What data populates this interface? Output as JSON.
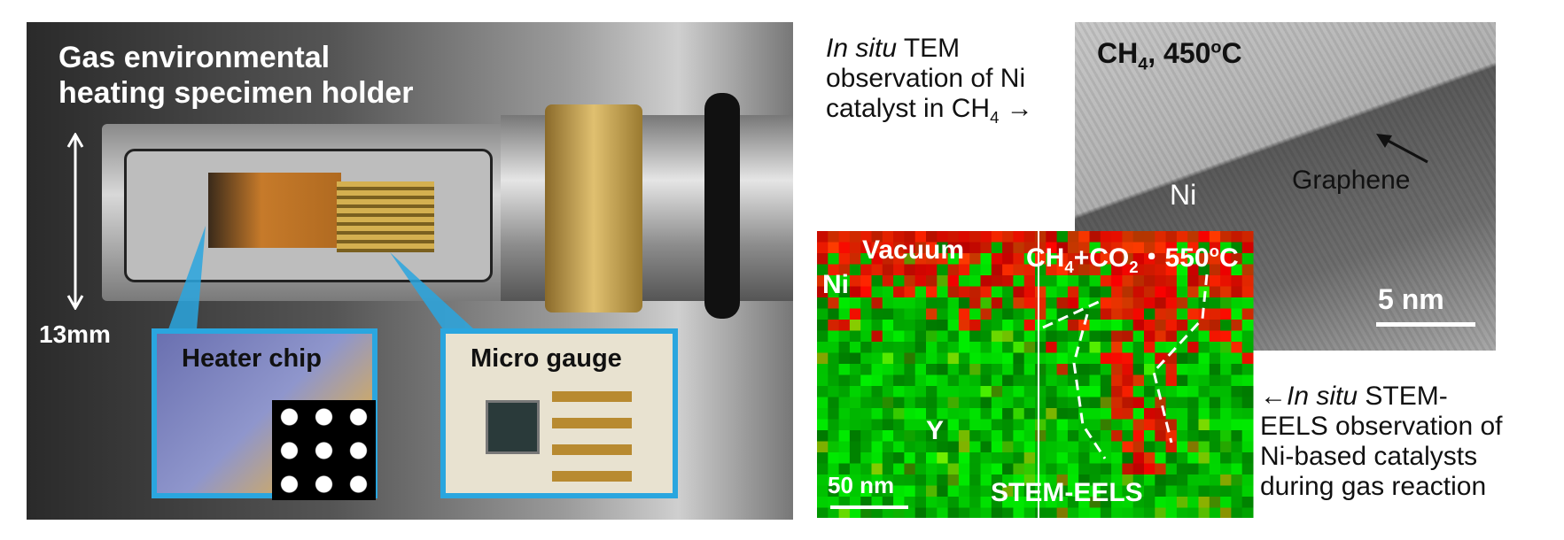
{
  "holder": {
    "title_lines": [
      "Gas environmental",
      "heating specimen holder"
    ],
    "scale": "13mm",
    "insets": [
      "Heater chip",
      "Micro gauge"
    ]
  },
  "tem": {
    "label": "CH",
    "label_sub": "4",
    "label_rest": ", 450",
    "label_sup": "o",
    "label_end": "C",
    "ni": "Ni",
    "graphene": "Graphene",
    "scale": "5 nm"
  },
  "tem_caption": {
    "italic": "In situ",
    "rest": " TEM",
    "line2": "observation of Ni",
    "line3": "catalyst in CH",
    "line3_sub": "4",
    "line3_end": " →"
  },
  "eels": {
    "vacuum": "Vacuum",
    "cond": "CH",
    "cond_sub1": "4",
    "cond_mid": "+CO",
    "cond_sub2": "2",
    "cond_rest": "・550",
    "cond_sup": "o",
    "cond_end": "C",
    "ni": "Ni",
    "y": "Y",
    "scale": "50 nm",
    "method": "STEM-EELS"
  },
  "eels_caption": {
    "arrow": "←",
    "italic": "In situ",
    "rest": " STEM-",
    "line2": "EELS observation of",
    "line3": "Ni-based catalysts",
    "line4": "during gas reaction"
  }
}
